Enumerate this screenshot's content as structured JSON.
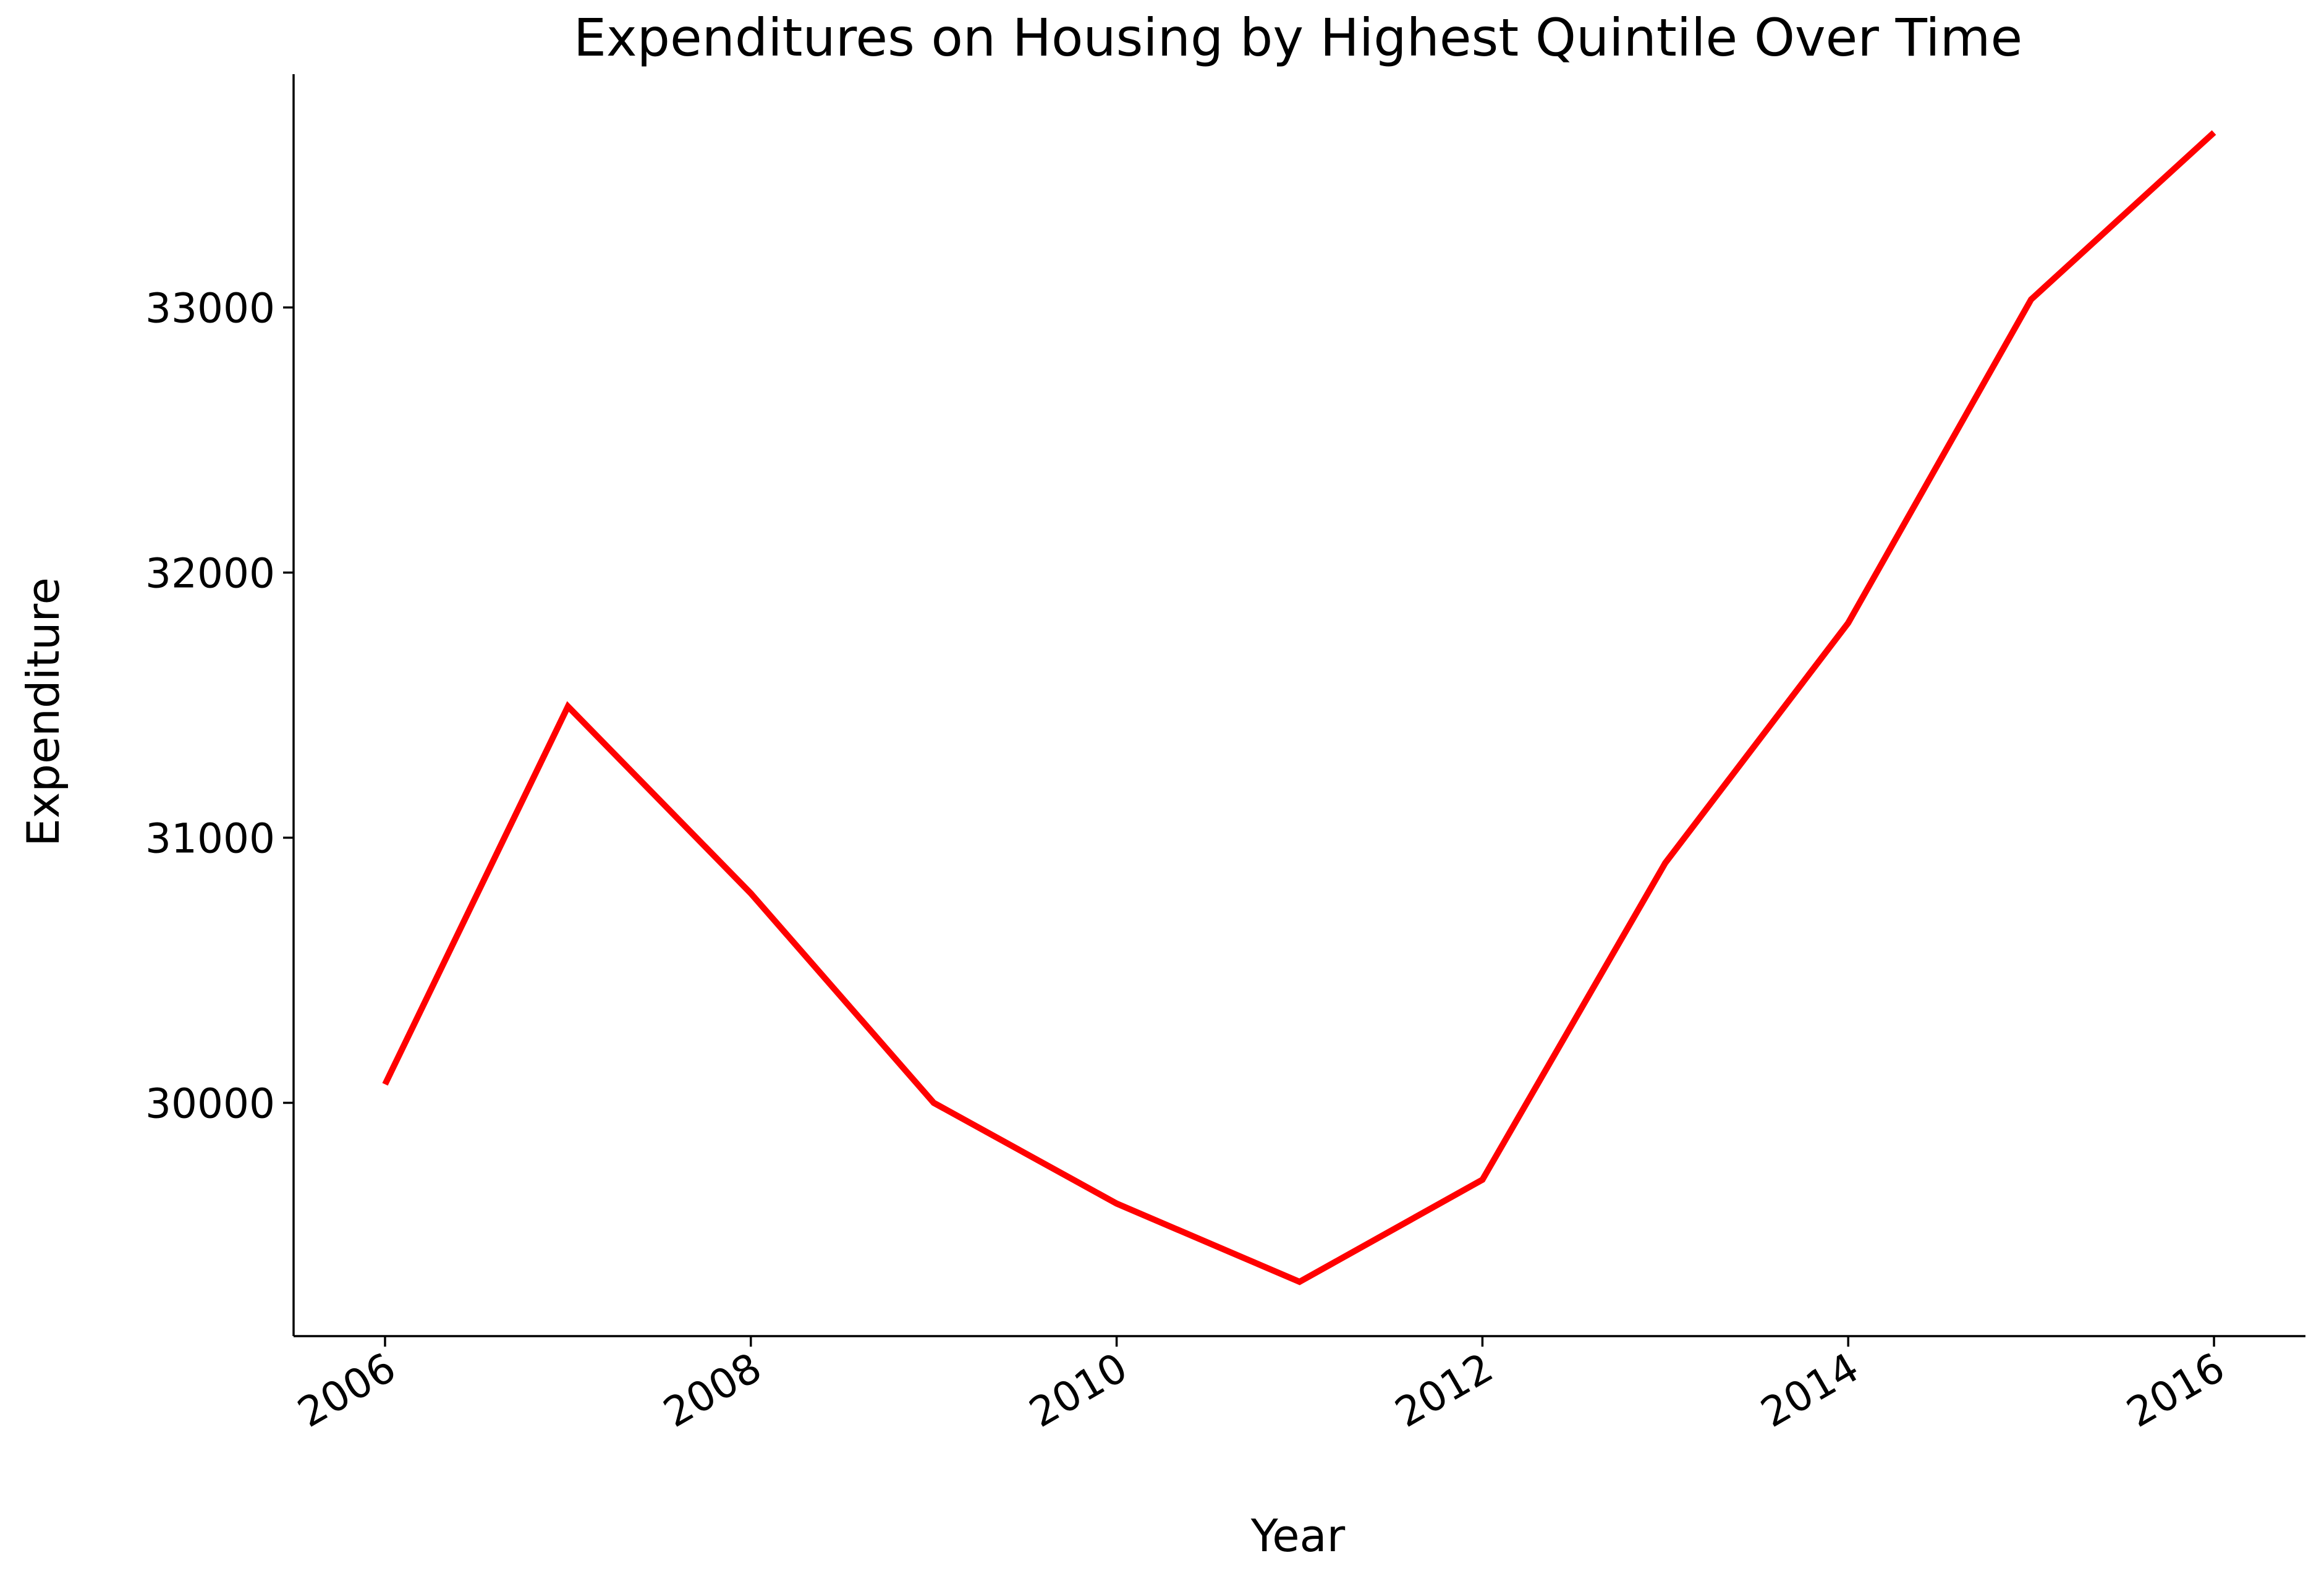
{
  "chart_data": {
    "type": "line",
    "title": "Expenditures on Housing by Highest Quintile Over Time",
    "xlabel": "Year",
    "ylabel": "Expenditure",
    "x": [
      2006,
      2007,
      2008,
      2009,
      2010,
      2011,
      2012,
      2013,
      2014,
      2015,
      2016
    ],
    "series": [
      {
        "values": [
          30070,
          31495,
          30790,
          30000,
          29620,
          29325,
          29710,
          30905,
          31810,
          33030,
          33660
        ],
        "color": "#ff0000"
      }
    ],
    "xlim": [
      2005.5,
      2016.5
    ],
    "ylim": [
      29120,
      33880
    ],
    "xticks": [
      2006,
      2008,
      2010,
      2012,
      2014,
      2016
    ],
    "yticks": [
      30000,
      31000,
      32000,
      33000
    ],
    "grid": false,
    "legend": "none"
  }
}
